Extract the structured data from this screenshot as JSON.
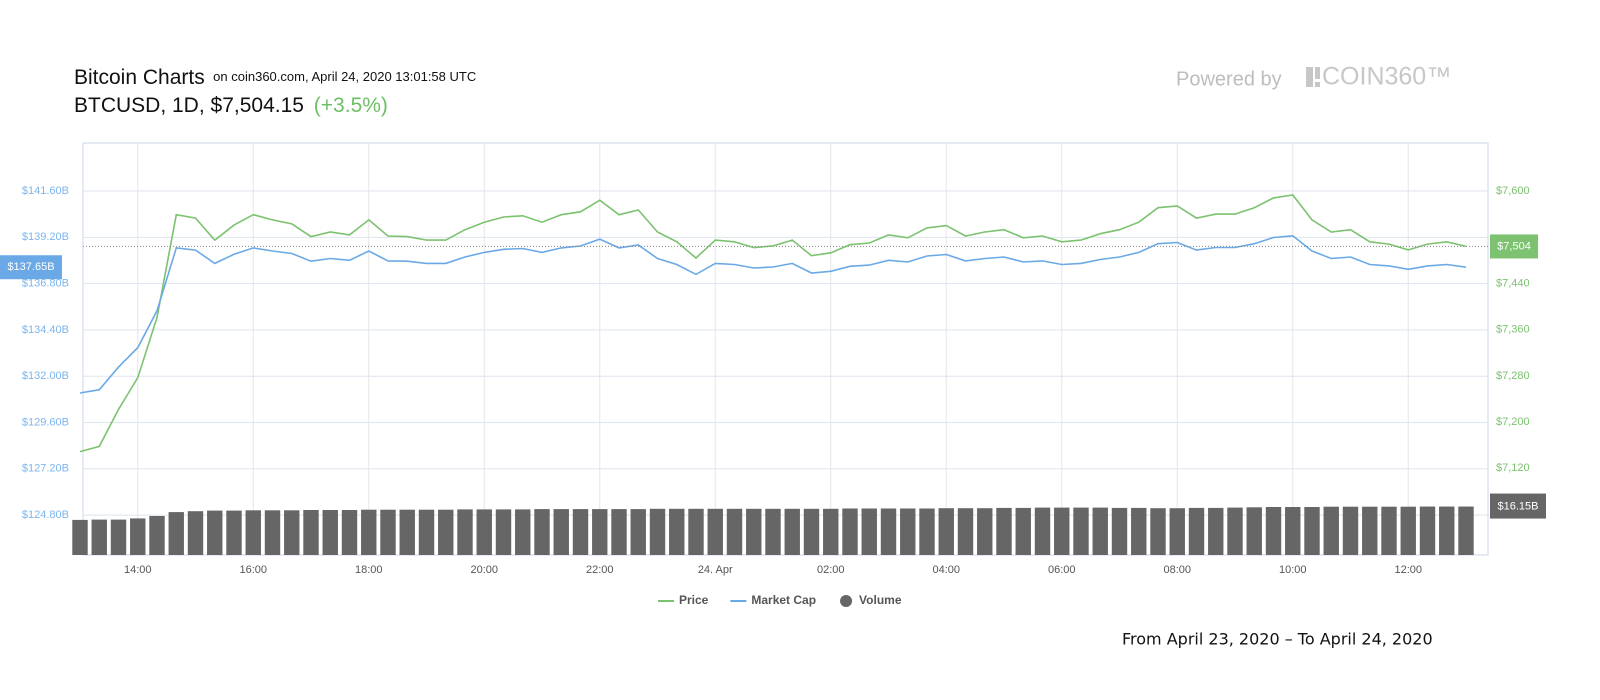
{
  "header": {
    "title": "Bitcoin Charts",
    "subtitle": "on coin360.com, April 24, 2020 13:01:58 UTC",
    "ticker": "BTCUSD, 1D, $7,504.15",
    "change": "(+3.5%)",
    "powered_by": "Powered by",
    "brand": "COIN360™"
  },
  "chart_data": {
    "type": "line",
    "categories": [
      null,
      null,
      null,
      "14:00",
      null,
      null,
      null,
      null,
      null,
      "16:00",
      null,
      null,
      null,
      null,
      null,
      "18:00",
      null,
      null,
      null,
      null,
      null,
      "20:00",
      null,
      null,
      null,
      null,
      null,
      "22:00",
      null,
      null,
      null,
      null,
      null,
      "24. Apr",
      null,
      null,
      null,
      null,
      null,
      "02:00",
      null,
      null,
      null,
      null,
      null,
      "04:00",
      null,
      null,
      null,
      null,
      null,
      "06:00",
      null,
      null,
      null,
      null,
      null,
      "08:00",
      null,
      null,
      null,
      null,
      null,
      "10:00",
      null,
      null,
      null,
      null,
      null,
      "12:00",
      null,
      null,
      null
    ],
    "series": [
      {
        "name": "Price",
        "color": "#7cc270",
        "axis": "y2",
        "last_label": "$7,504",
        "values": [
          7149,
          7158,
          7222,
          7277,
          7381,
          7559,
          7553,
          7515,
          7541,
          7559,
          7550,
          7543,
          7521,
          7529,
          7524,
          7550,
          7522,
          7521,
          7515,
          7515,
          7533,
          7546,
          7555,
          7557,
          7546,
          7559,
          7564,
          7584,
          7559,
          7567,
          7529,
          7512,
          7484,
          7515,
          7512,
          7502,
          7505,
          7515,
          7488,
          7493,
          7507,
          7510,
          7524,
          7519,
          7536,
          7540,
          7522,
          7529,
          7533,
          7519,
          7522,
          7512,
          7515,
          7526,
          7533,
          7546,
          7571,
          7574,
          7553,
          7560,
          7560,
          7571,
          7588,
          7593,
          7550,
          7529,
          7533,
          7512,
          7508,
          7498,
          7508,
          7512,
          7504
        ]
      },
      {
        "name": "Market Cap",
        "color": "#6aa9e6",
        "last_label": "$137.65B",
        "values": [
          131.13,
          131.3,
          132.47,
          133.48,
          135.39,
          138.65,
          138.54,
          137.85,
          138.32,
          138.65,
          138.49,
          138.36,
          137.96,
          138.1,
          138.01,
          138.49,
          137.98,
          137.96,
          137.85,
          137.85,
          138.18,
          138.42,
          138.58,
          138.62,
          138.42,
          138.65,
          138.75,
          139.11,
          138.65,
          138.8,
          138.1,
          137.79,
          137.28,
          137.85,
          137.79,
          137.61,
          137.66,
          137.85,
          137.35,
          137.44,
          137.7,
          137.76,
          138.01,
          137.92,
          138.23,
          138.31,
          137.98,
          138.1,
          138.18,
          137.92,
          137.98,
          137.79,
          137.85,
          138.05,
          138.18,
          138.42,
          138.87,
          138.93,
          138.54,
          138.67,
          138.67,
          138.87,
          139.19,
          139.28,
          138.49,
          138.1,
          138.18,
          137.79,
          137.72,
          137.54,
          137.72,
          137.79,
          137.65
        ]
      },
      {
        "name": "Volume",
        "color": "#666666",
        "axis": "y3",
        "type": "bar",
        "last_label": "$16.15B",
        "values": [
          11.7,
          11.8,
          11.8,
          12.2,
          13.0,
          14.3,
          14.6,
          14.8,
          14.8,
          14.9,
          14.9,
          14.9,
          15.0,
          15.0,
          15.0,
          15.1,
          15.1,
          15.1,
          15.1,
          15.1,
          15.2,
          15.2,
          15.2,
          15.2,
          15.3,
          15.3,
          15.3,
          15.3,
          15.3,
          15.3,
          15.4,
          15.4,
          15.4,
          15.4,
          15.4,
          15.4,
          15.4,
          15.4,
          15.4,
          15.4,
          15.5,
          15.5,
          15.5,
          15.5,
          15.5,
          15.6,
          15.6,
          15.6,
          15.7,
          15.7,
          15.8,
          15.8,
          15.8,
          15.8,
          15.7,
          15.7,
          15.6,
          15.6,
          15.7,
          15.7,
          15.8,
          15.9,
          16.0,
          16.0,
          16.0,
          16.1,
          16.1,
          16.1,
          16.1,
          16.1,
          16.15,
          16.15,
          16.15
        ]
      }
    ],
    "ylim": [
      122.73,
      144.09
    ],
    "yticks": [
      {
        "value": 141.6,
        "label": "$141.60B"
      },
      {
        "value": 139.2,
        "label": "$139.20B"
      },
      {
        "value": 136.8,
        "label": "$136.80B"
      },
      {
        "value": 134.4,
        "label": "$134.40B"
      },
      {
        "value": 132,
        "label": "$132.00B"
      },
      {
        "value": 129.6,
        "label": "$129.60B"
      },
      {
        "value": 127.2,
        "label": "$127.20B"
      },
      {
        "value": 124.8,
        "label": "$124.80B"
      }
    ],
    "y2lim": [
      6970,
      7683
    ],
    "y2ticks": [
      {
        "value": 7600,
        "label": "$7,600"
      },
      {
        "value": 7440,
        "label": "$7,440"
      },
      {
        "value": 7360,
        "label": "$7,360"
      },
      {
        "value": 7280,
        "label": "$7,280"
      },
      {
        "value": 7200,
        "label": "$7,200"
      },
      {
        "value": 7120,
        "label": "$7,120"
      }
    ],
    "y3lim": [
      0,
      20
    ],
    "grid": true
  },
  "footer": "From April 23, 2020 – To April 24, 2020"
}
